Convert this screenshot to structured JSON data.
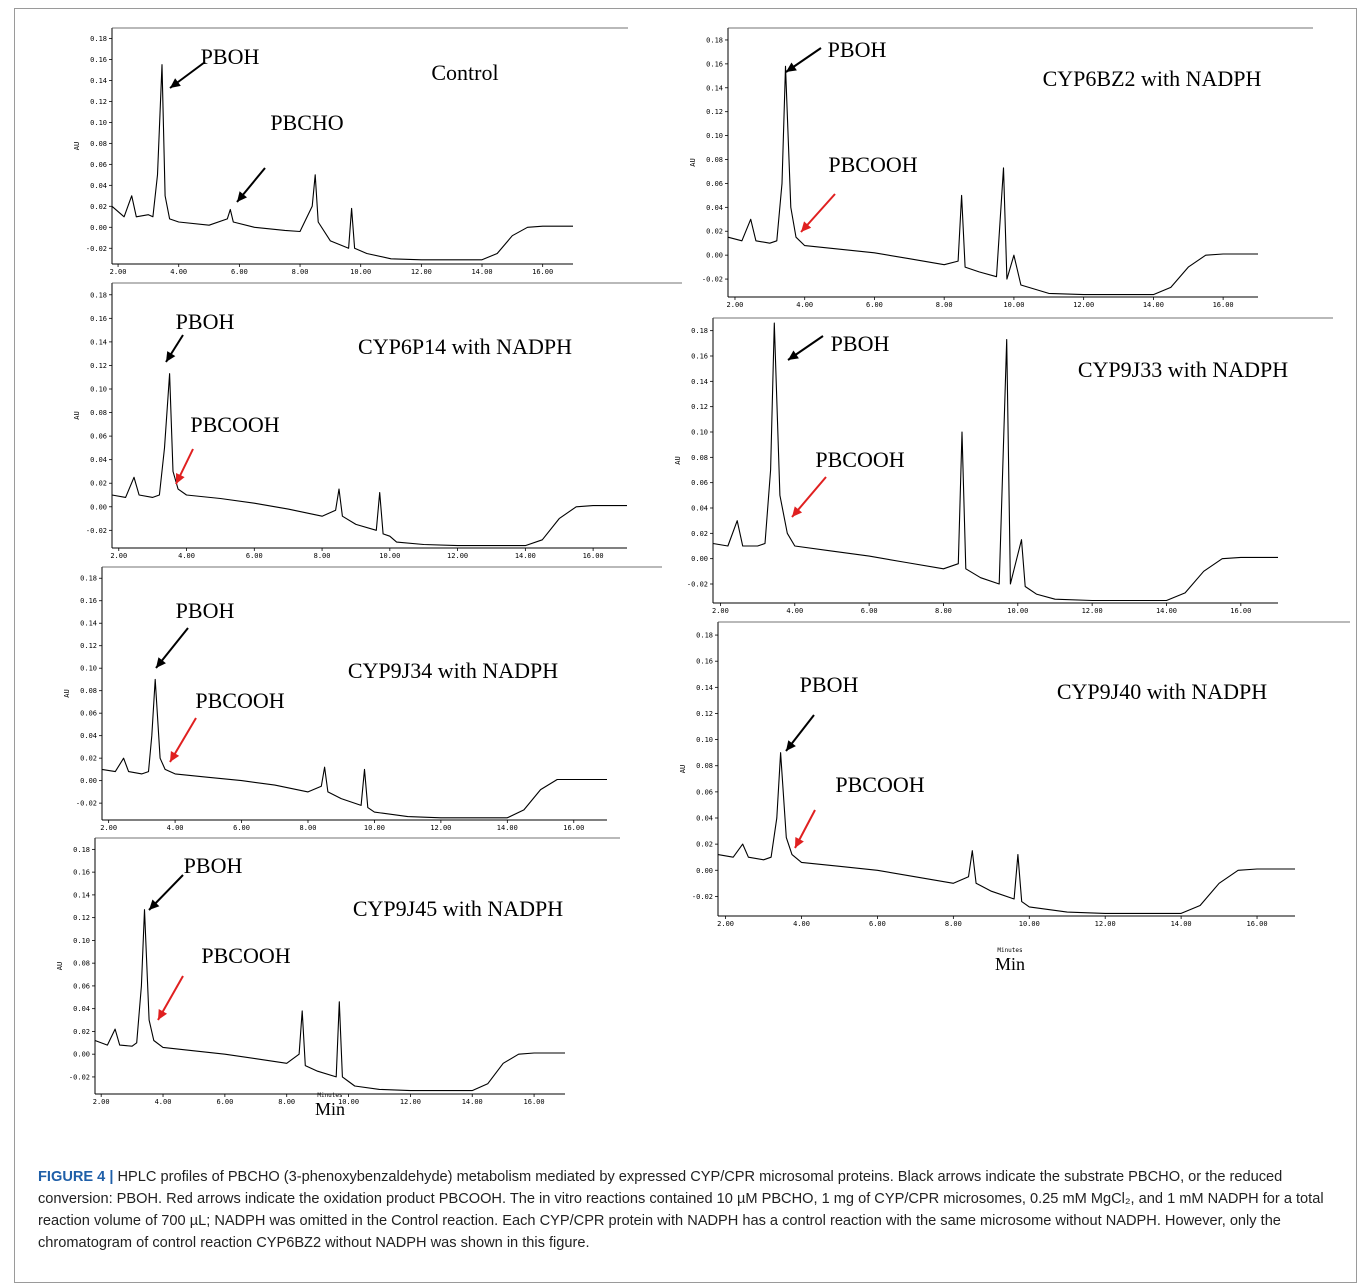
{
  "figure": {
    "caption_label": "FIGURE 4 |",
    "caption_text": "HPLC profiles of PBCHO (3-phenoxybenzaldehyde) metabolism mediated by expressed CYP/CPR microsomal proteins. Black arrows indicate the substrate PBCHO, or the reduced conversion: PBOH. Red arrows indicate the oxidation product PBCOOH. The in vitro reactions contained 10 µM PBCHO, 1 mg of CYP/CPR microsomes, 0.25 mM MgCl₂, and 1 mM NADPH for a total reaction volume of 700 µL; NADPH was omitted in the Control reaction. Each CYP/CPR protein with NADPH has a control reaction with the same microsome without NADPH. However, only the chromatogram of control reaction CYP6BZ2 without NADPH was shown in this figure.",
    "x_axis_unit": "Min",
    "x_axis_word": "Minutes",
    "y_axis_unit": "AU",
    "colors": {
      "substrate_arrow": "#000000",
      "oxidation_arrow": "#e02020",
      "trace": "#000000",
      "frame": "#9a9a9a",
      "caption_label": "#1f5fa8"
    }
  },
  "chart_data": [
    {
      "type": "line",
      "title": "Control",
      "ylabel": "AU",
      "xlabel": "",
      "xlim": [
        1.8,
        17
      ],
      "ylim": [
        -0.035,
        0.19
      ],
      "xticks": [
        "2.00",
        "4.00",
        "6.00",
        "8.00",
        "10.00",
        "12.00",
        "14.00",
        "16.00"
      ],
      "yticks": [
        "-0.02",
        "0.00",
        "0.02",
        "0.04",
        "0.06",
        "0.08",
        "0.10",
        "0.12",
        "0.14",
        "0.16",
        "0.18"
      ],
      "annotations": [
        {
          "text": "PBOH",
          "color": "black",
          "x": 3.45
        },
        {
          "text": "PBCHO",
          "color": "black",
          "x": 5.7
        }
      ],
      "series": [
        {
          "x": [
            1.8,
            2.2,
            2.45,
            2.6,
            3.0,
            3.15,
            3.3,
            3.45,
            3.55,
            3.7,
            4.0,
            5.0,
            5.6,
            5.7,
            5.8,
            6.5,
            7.5,
            8.0,
            8.4,
            8.5,
            8.6,
            9.0,
            9.6,
            9.7,
            9.8,
            10.2,
            11.0,
            12.0,
            13.0,
            14.0,
            14.5,
            15.0,
            15.5,
            16.0,
            17.0
          ],
          "y": [
            0.02,
            0.01,
            0.03,
            0.01,
            0.012,
            0.01,
            0.05,
            0.155,
            0.03,
            0.008,
            0.005,
            0.002,
            0.008,
            0.017,
            0.005,
            0.0,
            -0.003,
            -0.004,
            0.02,
            0.05,
            0.005,
            -0.013,
            -0.02,
            0.018,
            -0.02,
            -0.025,
            -0.03,
            -0.031,
            -0.031,
            -0.031,
            -0.025,
            -0.008,
            0.0,
            0.001,
            0.001
          ]
        }
      ]
    },
    {
      "type": "line",
      "title": "CYP6P14 with NADPH",
      "ylabel": "AU",
      "xlabel": "",
      "xlim": [
        1.8,
        17
      ],
      "ylim": [
        -0.035,
        0.19
      ],
      "xticks": [
        "2.00",
        "4.00",
        "6.00",
        "8.00",
        "10.00",
        "12.00",
        "14.00",
        "16.00"
      ],
      "yticks": [
        "-0.02",
        "0.00",
        "0.02",
        "0.04",
        "0.06",
        "0.08",
        "0.10",
        "0.12",
        "0.14",
        "0.16",
        "0.18"
      ],
      "annotations": [
        {
          "text": "PBOH",
          "color": "black",
          "x": 3.45
        },
        {
          "text": "PBCOOH",
          "color": "red",
          "x": 3.75
        }
      ],
      "series": [
        {
          "x": [
            1.8,
            2.2,
            2.45,
            2.6,
            3.0,
            3.2,
            3.35,
            3.5,
            3.6,
            3.75,
            4.0,
            5.0,
            6.0,
            7.0,
            8.0,
            8.4,
            8.5,
            8.6,
            9.0,
            9.6,
            9.7,
            9.8,
            10.0,
            10.2,
            11.0,
            12.0,
            13.0,
            14.0,
            14.5,
            15.0,
            15.5,
            16.0,
            17.0
          ],
          "y": [
            0.01,
            0.008,
            0.025,
            0.01,
            0.008,
            0.01,
            0.05,
            0.113,
            0.03,
            0.015,
            0.01,
            0.007,
            0.003,
            -0.002,
            -0.008,
            -0.003,
            0.015,
            -0.008,
            -0.015,
            -0.02,
            0.012,
            -0.023,
            -0.025,
            -0.03,
            -0.032,
            -0.033,
            -0.033,
            -0.033,
            -0.028,
            -0.01,
            0.0,
            0.001,
            0.001
          ]
        }
      ]
    },
    {
      "type": "line",
      "title": "CYP9J34 with NADPH",
      "ylabel": "AU",
      "xlabel": "",
      "xlim": [
        1.8,
        17
      ],
      "ylim": [
        -0.035,
        0.19
      ],
      "xticks": [
        "2.00",
        "4.00",
        "6.00",
        "8.00",
        "10.00",
        "12.00",
        "14.00",
        "16.00"
      ],
      "yticks": [
        "-0.02",
        "0.00",
        "0.02",
        "0.04",
        "0.06",
        "0.08",
        "0.10",
        "0.12",
        "0.14",
        "0.16",
        "0.18"
      ],
      "annotations": [
        {
          "text": "PBOH",
          "color": "black",
          "x": 3.4
        },
        {
          "text": "PBCOOH",
          "color": "red",
          "x": 3.7
        }
      ],
      "series": [
        {
          "x": [
            1.8,
            2.2,
            2.45,
            2.6,
            3.0,
            3.2,
            3.3,
            3.4,
            3.55,
            3.7,
            4.0,
            5.0,
            6.0,
            7.0,
            8.0,
            8.4,
            8.5,
            8.6,
            9.0,
            9.6,
            9.7,
            9.8,
            10.0,
            11.0,
            12.0,
            13.0,
            14.0,
            14.5,
            15.0,
            15.5,
            16.0,
            17.0
          ],
          "y": [
            0.01,
            0.008,
            0.02,
            0.008,
            0.006,
            0.008,
            0.04,
            0.09,
            0.02,
            0.01,
            0.006,
            0.003,
            0.0,
            -0.004,
            -0.01,
            -0.005,
            0.012,
            -0.01,
            -0.016,
            -0.022,
            0.01,
            -0.024,
            -0.028,
            -0.032,
            -0.033,
            -0.033,
            -0.033,
            -0.026,
            -0.008,
            0.001,
            0.001,
            0.001
          ]
        }
      ]
    },
    {
      "type": "line",
      "title": "CYP9J45 with NADPH",
      "ylabel": "AU",
      "xlabel": "Min",
      "xlim": [
        1.8,
        17
      ],
      "ylim": [
        -0.035,
        0.19
      ],
      "xticks": [
        "2.00",
        "4.00",
        "6.00",
        "8.00",
        "10.00",
        "12.00",
        "14.00",
        "16.00"
      ],
      "yticks": [
        "-0.02",
        "0.00",
        "0.02",
        "0.04",
        "0.06",
        "0.08",
        "0.10",
        "0.12",
        "0.14",
        "0.16",
        "0.18"
      ],
      "annotations": [
        {
          "text": "PBOH",
          "color": "black",
          "x": 3.4
        },
        {
          "text": "PBCOOH",
          "color": "red",
          "x": 3.7
        }
      ],
      "series": [
        {
          "x": [
            1.8,
            2.2,
            2.45,
            2.6,
            3.0,
            3.15,
            3.3,
            3.4,
            3.55,
            3.7,
            4.0,
            5.0,
            6.0,
            7.0,
            8.0,
            8.4,
            8.5,
            8.6,
            9.0,
            9.6,
            9.7,
            9.8,
            10.0,
            10.2,
            11.0,
            12.0,
            13.0,
            14.0,
            14.5,
            15.0,
            15.5,
            16.0,
            17.0
          ],
          "y": [
            0.012,
            0.008,
            0.022,
            0.008,
            0.007,
            0.01,
            0.06,
            0.127,
            0.03,
            0.012,
            0.006,
            0.003,
            0.0,
            -0.004,
            -0.008,
            0.0,
            0.038,
            -0.01,
            -0.015,
            -0.02,
            0.046,
            -0.02,
            -0.024,
            -0.028,
            -0.031,
            -0.032,
            -0.032,
            -0.032,
            -0.026,
            -0.008,
            0.0,
            0.001,
            0.001
          ]
        }
      ]
    },
    {
      "type": "line",
      "title": "CYP6BZ2 with NADPH",
      "ylabel": "AU",
      "xlabel": "",
      "xlim": [
        1.8,
        17
      ],
      "ylim": [
        -0.035,
        0.19
      ],
      "xticks": [
        "2.00",
        "4.00",
        "6.00",
        "8.00",
        "10.00",
        "12.00",
        "14.00",
        "16.00"
      ],
      "yticks": [
        "-0.02",
        "0.00",
        "0.02",
        "0.04",
        "0.06",
        "0.08",
        "0.10",
        "0.12",
        "0.14",
        "0.16",
        "0.18"
      ],
      "annotations": [
        {
          "text": "PBOH",
          "color": "black",
          "x": 3.45
        },
        {
          "text": "PBCOOH",
          "color": "red",
          "x": 3.75
        }
      ],
      "series": [
        {
          "x": [
            1.8,
            2.2,
            2.45,
            2.6,
            3.0,
            3.2,
            3.35,
            3.45,
            3.6,
            3.75,
            4.0,
            5.0,
            6.0,
            7.0,
            8.0,
            8.4,
            8.5,
            8.6,
            9.0,
            9.5,
            9.7,
            9.8,
            10.0,
            10.2,
            11.0,
            12.0,
            13.0,
            14.0,
            14.5,
            15.0,
            15.5,
            16.0,
            17.0
          ],
          "y": [
            0.015,
            0.012,
            0.03,
            0.012,
            0.01,
            0.012,
            0.06,
            0.158,
            0.04,
            0.015,
            0.008,
            0.005,
            0.002,
            -0.003,
            -0.008,
            -0.005,
            0.05,
            -0.01,
            -0.014,
            -0.018,
            0.073,
            -0.02,
            0.0,
            -0.025,
            -0.032,
            -0.033,
            -0.033,
            -0.033,
            -0.027,
            -0.01,
            0.0,
            0.001,
            0.001
          ]
        }
      ]
    },
    {
      "type": "line",
      "title": "CYP9J33 with NADPH",
      "ylabel": "AU",
      "xlabel": "",
      "xlim": [
        1.8,
        17
      ],
      "ylim": [
        -0.035,
        0.19
      ],
      "xticks": [
        "2.00",
        "4.00",
        "6.00",
        "8.00",
        "10.00",
        "12.00",
        "14.00",
        "16.00"
      ],
      "yticks": [
        "-0.02",
        "0.00",
        "0.02",
        "0.04",
        "0.06",
        "0.08",
        "0.10",
        "0.12",
        "0.14",
        "0.16",
        "0.18"
      ],
      "annotations": [
        {
          "text": "PBOH",
          "color": "black",
          "x": 3.45
        },
        {
          "text": "PBCOOH",
          "color": "red",
          "x": 3.8
        }
      ],
      "series": [
        {
          "x": [
            1.8,
            2.2,
            2.45,
            2.6,
            3.0,
            3.2,
            3.35,
            3.45,
            3.6,
            3.8,
            4.0,
            5.0,
            6.0,
            7.0,
            8.0,
            8.4,
            8.5,
            8.6,
            9.0,
            9.5,
            9.7,
            9.8,
            10.1,
            10.2,
            10.5,
            11.0,
            12.0,
            13.0,
            14.0,
            14.5,
            15.0,
            15.5,
            16.0,
            17.0
          ],
          "y": [
            0.012,
            0.01,
            0.03,
            0.01,
            0.01,
            0.012,
            0.07,
            0.186,
            0.05,
            0.02,
            0.01,
            0.006,
            0.002,
            -0.003,
            -0.008,
            -0.004,
            0.1,
            -0.008,
            -0.015,
            -0.02,
            0.173,
            -0.02,
            0.015,
            -0.022,
            -0.028,
            -0.032,
            -0.033,
            -0.033,
            -0.033,
            -0.027,
            -0.01,
            0.0,
            0.001,
            0.001
          ]
        }
      ]
    },
    {
      "type": "line",
      "title": "CYP9J40 with NADPH",
      "ylabel": "AU",
      "xlabel": "Min",
      "xlim": [
        1.8,
        17
      ],
      "ylim": [
        -0.035,
        0.19
      ],
      "xticks": [
        "2.00",
        "4.00",
        "6.00",
        "8.00",
        "10.00",
        "12.00",
        "14.00",
        "16.00"
      ],
      "yticks": [
        "-0.02",
        "0.00",
        "0.02",
        "0.04",
        "0.06",
        "0.08",
        "0.10",
        "0.12",
        "0.14",
        "0.16",
        "0.18"
      ],
      "annotations": [
        {
          "text": "PBOH",
          "color": "black",
          "x": 3.45
        },
        {
          "text": "PBCOOH",
          "color": "red",
          "x": 3.75
        }
      ],
      "series": [
        {
          "x": [
            1.8,
            2.2,
            2.45,
            2.6,
            3.0,
            3.2,
            3.35,
            3.45,
            3.6,
            3.75,
            4.0,
            5.0,
            6.0,
            7.0,
            8.0,
            8.4,
            8.5,
            8.6,
            9.0,
            9.6,
            9.7,
            9.8,
            10.0,
            11.0,
            12.0,
            13.0,
            14.0,
            14.5,
            15.0,
            15.5,
            16.0,
            17.0
          ],
          "y": [
            0.012,
            0.01,
            0.02,
            0.01,
            0.008,
            0.01,
            0.04,
            0.09,
            0.025,
            0.012,
            0.006,
            0.003,
            0.0,
            -0.005,
            -0.01,
            -0.005,
            0.015,
            -0.01,
            -0.016,
            -0.022,
            0.012,
            -0.024,
            -0.028,
            -0.032,
            -0.033,
            -0.033,
            -0.033,
            -0.027,
            -0.01,
            0.0,
            0.001,
            0.001
          ]
        }
      ]
    }
  ]
}
